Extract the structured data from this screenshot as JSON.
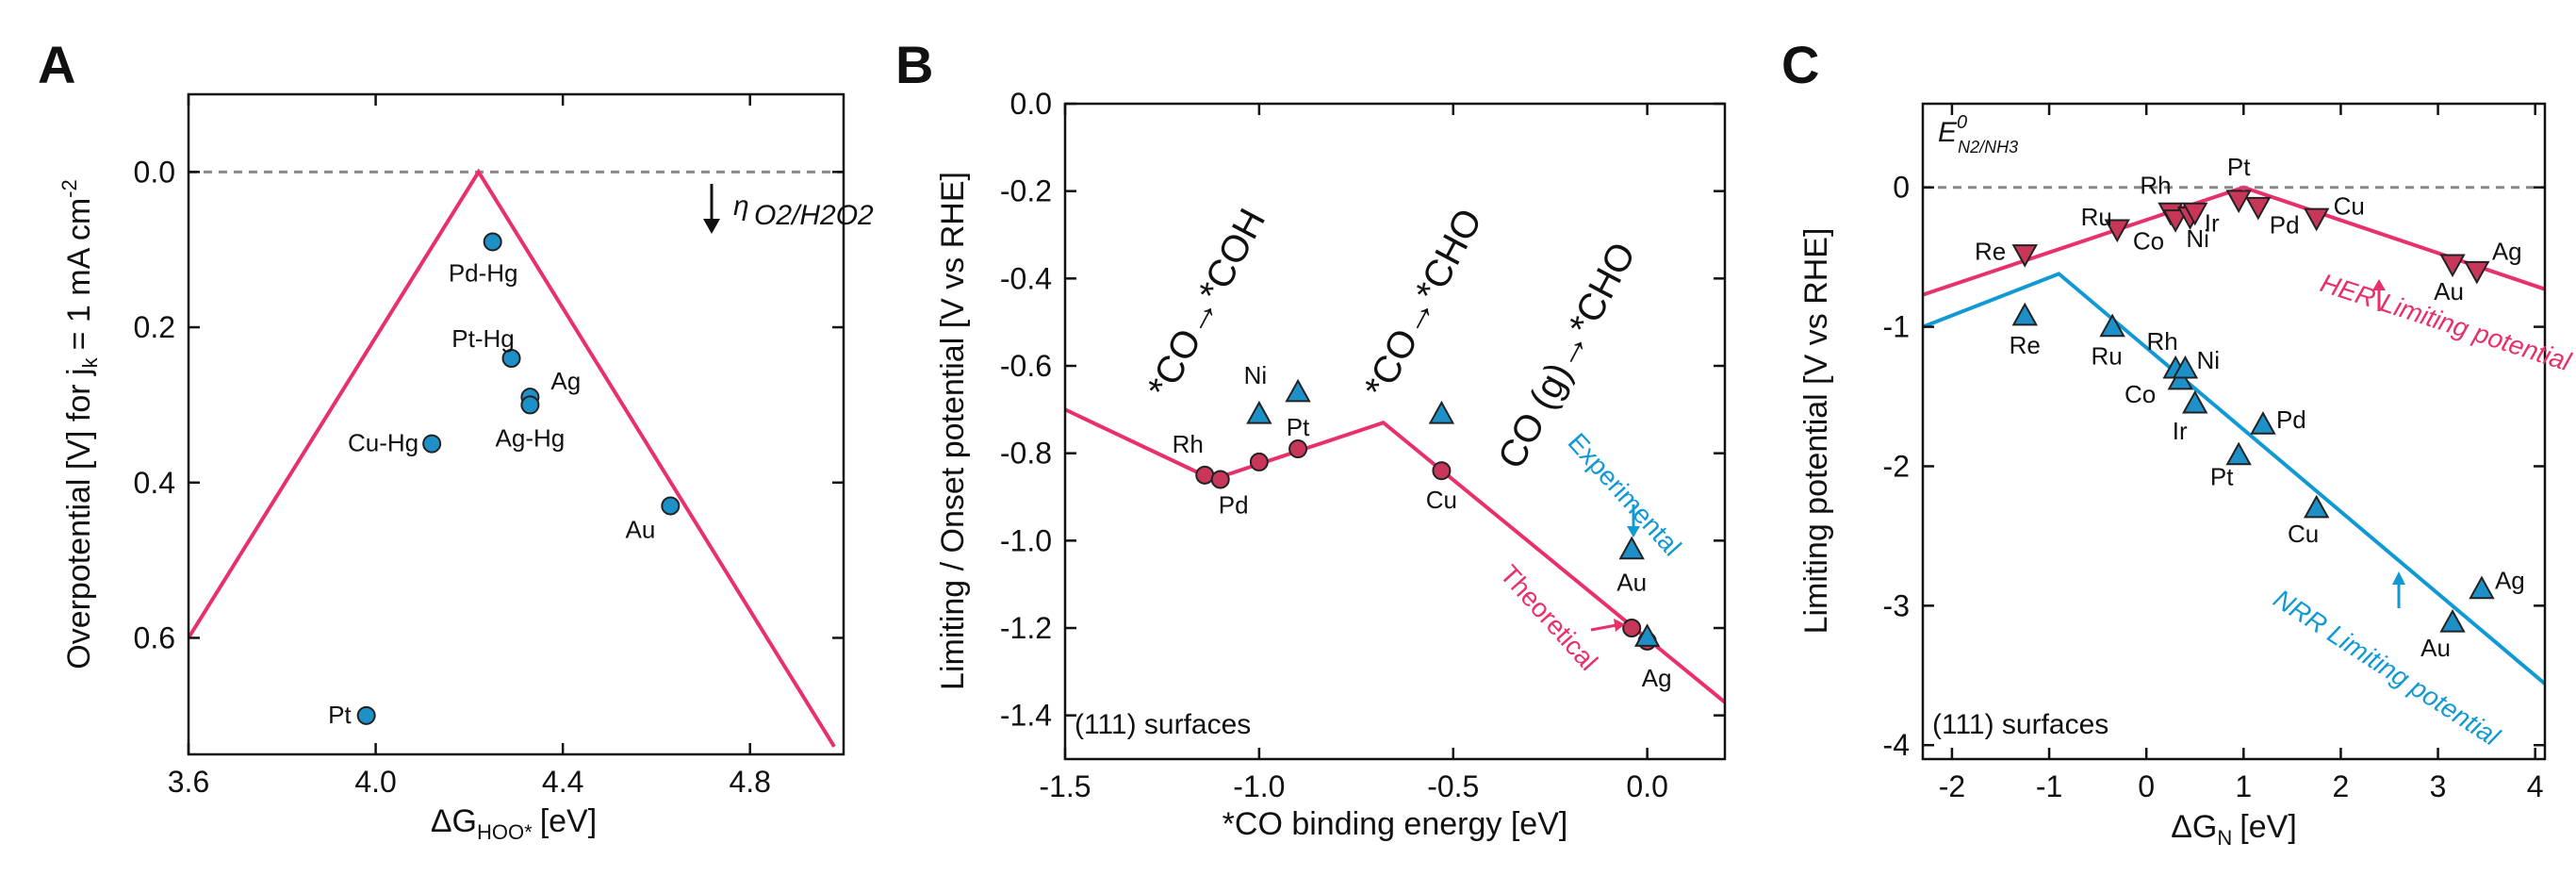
{
  "colors": {
    "pink": "#e8306a",
    "blue": "#1199d4",
    "marker_blue": "#1e90c8",
    "marker_pink": "#c8365a",
    "dash": "#8a8a8a"
  },
  "chart_data": [
    {
      "panel": "A",
      "type": "scatter",
      "xlabel": "ΔG",
      "xlabel_sub": "HOO*",
      "xlabel_unit": "[eV]",
      "ylabel": "Overpotential [V] for j",
      "ylabel_sub": "k",
      "ylabel_rest": "= 1 mA cm",
      "ylabel_sup": "-2",
      "xlim": [
        3.6,
        5.0
      ],
      "ylim": [
        -0.1,
        0.75
      ],
      "y_inverted": true,
      "xticks": [
        "3.6",
        "4.0",
        "4.4",
        "4.8"
      ],
      "xtick_values": [
        3.6,
        4.0,
        4.4,
        4.8
      ],
      "yticks": [
        "0.0",
        "0.2",
        "0.4",
        "0.6"
      ],
      "ytick_values": [
        0.0,
        0.2,
        0.4,
        0.6
      ],
      "reference_line": {
        "y": 0.0,
        "style": "dashed"
      },
      "annotation": {
        "symbol": "η",
        "sub": "O2/H2O2",
        "arrow": "down"
      },
      "volcano": [
        [
          3.6,
          0.6
        ],
        [
          4.22,
          0.0
        ],
        [
          4.98,
          0.74
        ]
      ],
      "points": [
        {
          "label": "Pd-Hg",
          "x": 4.25,
          "y": 0.09
        },
        {
          "label": "Pt-Hg",
          "x": 4.29,
          "y": 0.24
        },
        {
          "label": "Ag",
          "x": 4.33,
          "y": 0.29
        },
        {
          "label": "Ag-Hg",
          "x": 4.33,
          "y": 0.3
        },
        {
          "label": "Cu-Hg",
          "x": 4.12,
          "y": 0.35
        },
        {
          "label": "Au",
          "x": 4.63,
          "y": 0.43
        },
        {
          "label": "Pt",
          "x": 3.98,
          "y": 0.7
        }
      ]
    },
    {
      "panel": "B",
      "type": "scatter",
      "xlabel": "*CO binding energy [eV]",
      "ylabel": "Limiting / Onset potential [V vs RHE]",
      "xlim": [
        -1.5,
        0.2
      ],
      "ylim": [
        -1.5,
        0.0
      ],
      "xticks": [
        "-1.5",
        "-1.0",
        "-0.5",
        "0.0"
      ],
      "xtick_values": [
        -1.5,
        -1.0,
        -0.5,
        0.0
      ],
      "yticks": [
        "0.0",
        "-0.2",
        "-0.4",
        "-0.6",
        "-0.8",
        "-1.0",
        "-1.2",
        "-1.4"
      ],
      "ytick_values": [
        0.0,
        -0.2,
        -0.4,
        -0.6,
        -0.8,
        -1.0,
        -1.2,
        -1.4
      ],
      "note": "(111) surfaces",
      "step_labels": [
        "*CO→*COH",
        "*CO→*CHO",
        "CO (g)→*CHO"
      ],
      "experimental_label": "Experimental",
      "theoretical_label": "Theoretical",
      "limiting_line": [
        [
          -1.5,
          -0.7
        ],
        [
          -1.12,
          -0.86
        ],
        [
          -0.68,
          -0.73
        ],
        [
          0.2,
          -1.37
        ]
      ],
      "theoretical_points": [
        {
          "label": "Rh",
          "x": -1.14,
          "y": -0.85
        },
        {
          "label": "Pd",
          "x": -1.1,
          "y": -0.86
        },
        {
          "label": "Ni",
          "x": -1.0,
          "y": -0.82
        },
        {
          "label": "Pt",
          "x": -0.9,
          "y": -0.79
        },
        {
          "label": "Cu",
          "x": -0.53,
          "y": -0.84
        },
        {
          "label": "Au",
          "x": -0.04,
          "y": -1.2
        },
        {
          "label": "Ag",
          "x": 0.0,
          "y": -1.23
        }
      ],
      "experimental_points": [
        {
          "label": "Ni",
          "x": -1.0,
          "y": -0.71
        },
        {
          "label": "Pt",
          "x": -0.9,
          "y": -0.66
        },
        {
          "label": "Cu",
          "x": -0.53,
          "y": -0.71
        },
        {
          "label": "Au",
          "x": -0.04,
          "y": -1.02
        },
        {
          "label": "Ag",
          "x": 0.0,
          "y": -1.22
        }
      ]
    },
    {
      "panel": "C",
      "type": "scatter",
      "xlabel": "ΔG",
      "xlabel_sub": "N",
      "xlabel_unit": "[eV]",
      "ylabel": "Limiting potential [V vs RHE]",
      "xlim": [
        -2.3,
        4.1
      ],
      "ylim": [
        -4.1,
        0.6
      ],
      "xticks": [
        "-2",
        "-1",
        "0",
        "1",
        "2",
        "3",
        "4"
      ],
      "xtick_values": [
        -2,
        -1,
        0,
        1,
        2,
        3,
        4
      ],
      "yticks": [
        "0",
        "-1",
        "-2",
        "-3",
        "-4"
      ],
      "ytick_values": [
        0,
        -1,
        -2,
        -3,
        -4
      ],
      "note": "(111) surfaces",
      "reference_line": {
        "y": 0.0,
        "style": "dashed"
      },
      "reference_label": {
        "E": "E",
        "sup": "0",
        "sub": "N2/NH3"
      },
      "her_label": "HER Limiting potential",
      "nrr_label": "NRR Limiting potential",
      "her_line": [
        [
          -2.3,
          -0.77
        ],
        [
          1.0,
          0.0
        ],
        [
          4.1,
          -0.73
        ]
      ],
      "nrr_line": [
        [
          -2.3,
          -1.0
        ],
        [
          -0.9,
          -0.62
        ],
        [
          4.1,
          -3.56
        ]
      ],
      "her_points": [
        {
          "label": "Re",
          "x": -1.25,
          "y": -0.48
        },
        {
          "label": "Ru",
          "x": -0.3,
          "y": -0.3
        },
        {
          "label": "Rh",
          "x": 0.25,
          "y": -0.18
        },
        {
          "label": "Co",
          "x": 0.3,
          "y": -0.23
        },
        {
          "label": "Ni",
          "x": 0.45,
          "y": -0.21
        },
        {
          "label": "Ir",
          "x": 0.5,
          "y": -0.18
        },
        {
          "label": "Pt",
          "x": 0.95,
          "y": -0.09
        },
        {
          "label": "Pd",
          "x": 1.15,
          "y": -0.14
        },
        {
          "label": "Cu",
          "x": 1.75,
          "y": -0.22
        },
        {
          "label": "Au",
          "x": 3.15,
          "y": -0.55
        },
        {
          "label": "Ag",
          "x": 3.4,
          "y": -0.6
        }
      ],
      "nrr_points": [
        {
          "label": "Re",
          "x": -1.25,
          "y": -0.92
        },
        {
          "label": "Ru",
          "x": -0.35,
          "y": -1.0
        },
        {
          "label": "Rh",
          "x": 0.3,
          "y": -1.3
        },
        {
          "label": "Co",
          "x": 0.35,
          "y": -1.38
        },
        {
          "label": "Ni",
          "x": 0.4,
          "y": -1.3
        },
        {
          "label": "Ir",
          "x": 0.5,
          "y": -1.55
        },
        {
          "label": "Pd",
          "x": 1.2,
          "y": -1.7
        },
        {
          "label": "Pt",
          "x": 0.95,
          "y": -1.92
        },
        {
          "label": "Cu",
          "x": 1.75,
          "y": -2.3
        },
        {
          "label": "Au",
          "x": 3.15,
          "y": -3.12
        },
        {
          "label": "Ag",
          "x": 3.45,
          "y": -2.88
        }
      ]
    }
  ]
}
